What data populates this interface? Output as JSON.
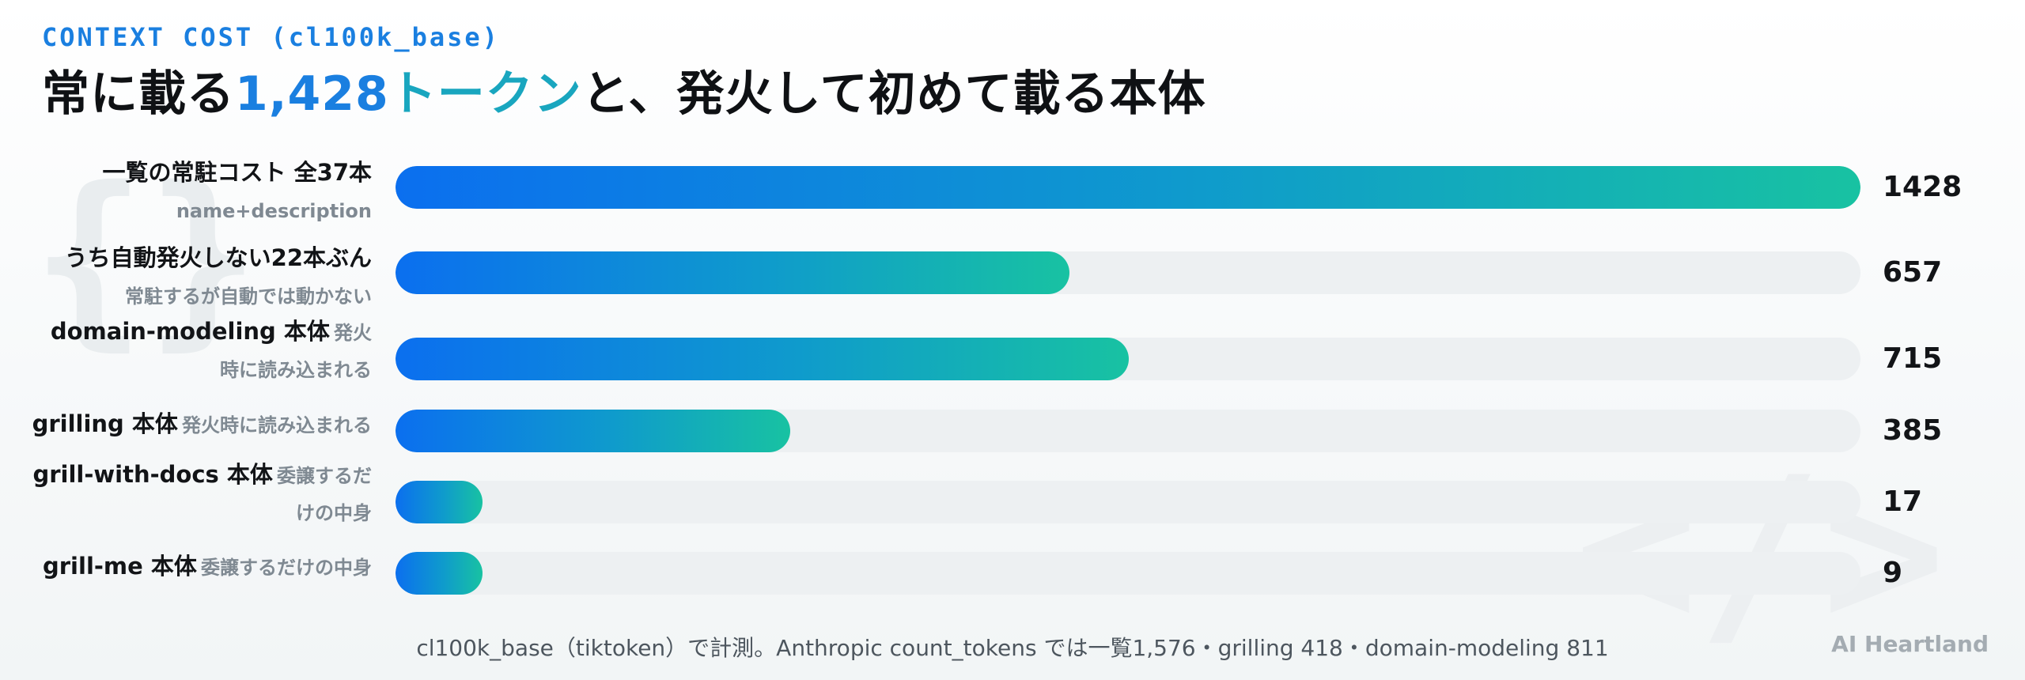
{
  "eyebrow": "CONTEXT COST (cl100k_base)",
  "headline": {
    "prefix": "常に載る",
    "number": "1,428",
    "keyword": "トークン",
    "suffix": "と、発火して初めて載る本体"
  },
  "chart_data": {
    "type": "bar",
    "orientation": "horizontal",
    "xlim": [
      0,
      1428
    ],
    "categories": [
      {
        "label": "一覧の常駐コスト 全37本",
        "sublabel": "name+description"
      },
      {
        "label": "うち自動発火しない22本ぶん",
        "sublabel": "常駐するが自動では動かない"
      },
      {
        "label": "domain-modeling 本体",
        "sublabel": "発火時に読み込まれる"
      },
      {
        "label": "grilling 本体",
        "sublabel": "発火時に読み込まれる"
      },
      {
        "label": "grill-with-docs 本体",
        "sublabel": "委譲するだけの中身"
      },
      {
        "label": "grill-me 本体",
        "sublabel": "委譲するだけの中身"
      }
    ],
    "values": [
      1428,
      657,
      715,
      385,
      17,
      9
    ]
  },
  "footer": "cl100k_base（tiktoken）で計測。Anthropic count_tokens では一覧1,576・grilling 418・domain-modeling 811",
  "brand": "AI Heartland",
  "colors": {
    "accent_blue": "#1a7fe0",
    "accent_teal": "#19a6bf",
    "bar_start": "#0b6fef",
    "bar_end": "#18c2a2",
    "track": "#edf0f2"
  }
}
